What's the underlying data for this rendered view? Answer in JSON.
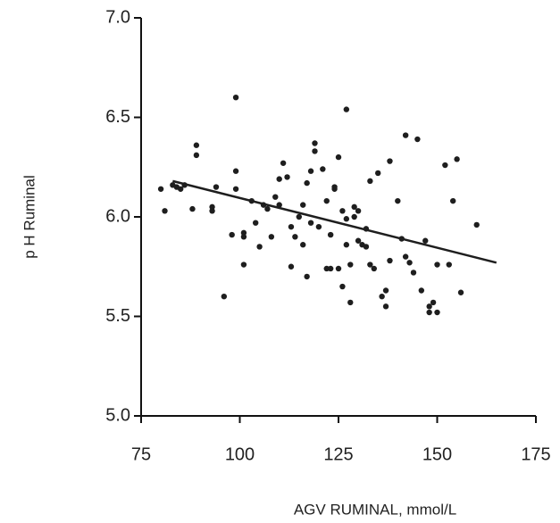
{
  "chart_data": {
    "type": "scatter",
    "x_label": "AGV RUMINAL, mmol/L",
    "y_label": "p H Ruminal",
    "color": "#1e1e1e",
    "x": [
      80,
      81,
      83,
      84,
      85,
      86,
      88,
      89,
      89,
      93,
      93,
      94,
      96,
      98,
      99,
      99,
      99,
      101,
      101,
      101,
      103,
      104,
      105,
      106,
      107,
      108,
      109,
      110,
      110,
      111,
      112,
      113,
      113,
      114,
      115,
      116,
      116,
      117,
      117,
      118,
      118,
      119,
      119,
      120,
      121,
      122,
      122,
      123,
      123,
      124,
      124,
      125,
      125,
      126,
      126,
      127,
      127,
      127,
      128,
      128,
      129,
      129,
      130,
      130,
      131,
      132,
      132,
      133,
      133,
      134,
      135,
      136,
      137,
      137,
      138,
      138,
      140,
      141,
      142,
      142,
      143,
      144,
      145,
      146,
      147,
      148,
      148,
      149,
      150,
      150,
      152,
      153,
      154,
      155,
      156,
      160
    ],
    "values": [
      6.14,
      6.03,
      6.16,
      6.15,
      6.14,
      6.16,
      6.04,
      6.36,
      6.31,
      6.05,
      6.03,
      6.15,
      5.6,
      5.91,
      6.14,
      6.23,
      6.6,
      5.9,
      5.76,
      5.92,
      6.08,
      5.97,
      5.85,
      6.06,
      6.04,
      5.9,
      6.1,
      6.06,
      6.19,
      6.27,
      6.2,
      5.95,
      5.75,
      5.9,
      6.0,
      6.06,
      5.86,
      6.17,
      5.7,
      6.23,
      5.97,
      6.33,
      6.37,
      5.95,
      6.24,
      6.08,
      5.74,
      5.91,
      5.74,
      6.15,
      6.14,
      6.3,
      5.74,
      6.03,
      5.65,
      6.54,
      5.86,
      5.99,
      5.57,
      5.76,
      6.05,
      6.0,
      5.88,
      6.03,
      5.86,
      5.85,
      5.94,
      6.18,
      5.76,
      5.74,
      6.22,
      5.6,
      5.63,
      5.55,
      5.78,
      6.28,
      6.08,
      5.89,
      6.41,
      5.8,
      5.77,
      5.72,
      6.39,
      5.63,
      5.88,
      5.55,
      5.52,
      5.57,
      5.52,
      5.76,
      6.26,
      5.76,
      6.08,
      6.29,
      5.62,
      5.96
    ],
    "trendline": {
      "x": [
        83,
        165
      ],
      "values": [
        6.18,
        5.77
      ]
    },
    "xlim": [
      75,
      175
    ],
    "xticks": [
      75,
      100,
      125,
      150,
      175
    ],
    "ylim": [
      5,
      7
    ],
    "yticks": [
      {
        "value": 5,
        "label": "5.0"
      },
      5.5,
      {
        "value": 6,
        "label": "6.0"
      },
      6.5,
      {
        "value": 7,
        "label": "7.0"
      }
    ]
  }
}
